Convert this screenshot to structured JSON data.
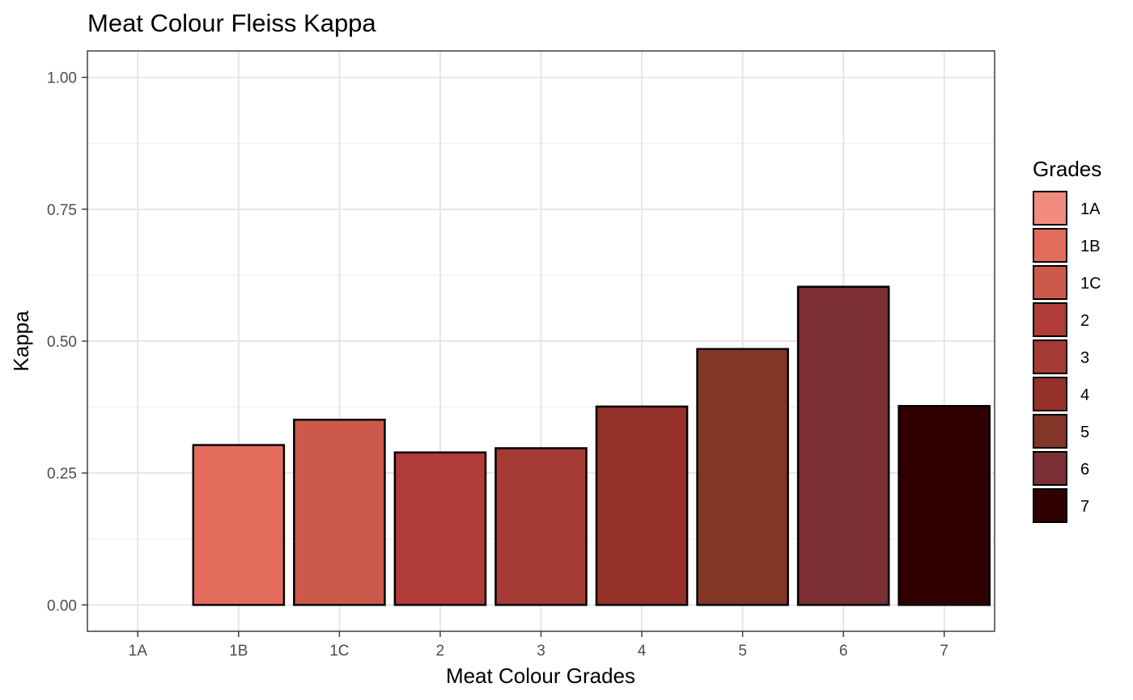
{
  "chart_data": {
    "type": "bar",
    "title": "Meat Colour Fleiss Kappa",
    "xlabel": "Meat Colour Grades",
    "ylabel": "Kappa",
    "categories": [
      "1A",
      "1B",
      "1C",
      "2",
      "3",
      "4",
      "5",
      "6",
      "7"
    ],
    "values": [
      0.0,
      0.303,
      0.351,
      0.289,
      0.297,
      0.376,
      0.485,
      0.603,
      0.377
    ],
    "colors": [
      "#F28B80",
      "#E46C5C",
      "#CC5A4A",
      "#B03B38",
      "#A43B34",
      "#963129",
      "#833528",
      "#7B2E33",
      "#300000"
    ],
    "ylim": [
      -0.05,
      1.05
    ],
    "yticks": [
      0.0,
      0.25,
      0.5,
      0.75,
      1.0
    ],
    "ytick_labels": [
      "0.00",
      "0.25",
      "0.50",
      "0.75",
      "1.00"
    ],
    "grid": true,
    "legend": {
      "title": "Grades",
      "placement": "right",
      "items": [
        "1A",
        "1B",
        "1C",
        "2",
        "3",
        "4",
        "5",
        "6",
        "7"
      ]
    }
  }
}
